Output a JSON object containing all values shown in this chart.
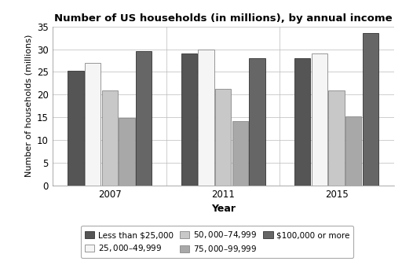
{
  "title": "Number of US households (in millions), by annual income",
  "xlabel": "Year",
  "ylabel": "Number of households (millions)",
  "years": [
    "2007",
    "2011",
    "2015"
  ],
  "categories": [
    "Less than $25,000",
    "$25,000–$49,999",
    "$50,000–$74,999",
    "$75,000–$99,999",
    "$100,000 or more"
  ],
  "values": {
    "Less than $25,000": [
      25.2,
      29.0,
      28.1
    ],
    "$25,000–$49,999": [
      27.0,
      30.0,
      29.0
    ],
    "$50,000–$74,999": [
      21.0,
      21.2,
      21.0
    ],
    "$75,000–$99,999": [
      14.8,
      14.2,
      15.3
    ],
    "$100,000 or more": [
      29.6,
      28.0,
      33.5
    ]
  },
  "colors": [
    "#555555",
    "#f5f5f5",
    "#c8c8c8",
    "#a8a8a8",
    "#666666"
  ],
  "edge_colors": [
    "#333333",
    "#888888",
    "#888888",
    "#888888",
    "#333333"
  ],
  "ylim": [
    0,
    35
  ],
  "yticks": [
    0,
    5,
    10,
    15,
    20,
    25,
    30,
    35
  ],
  "background_color": "#ffffff"
}
